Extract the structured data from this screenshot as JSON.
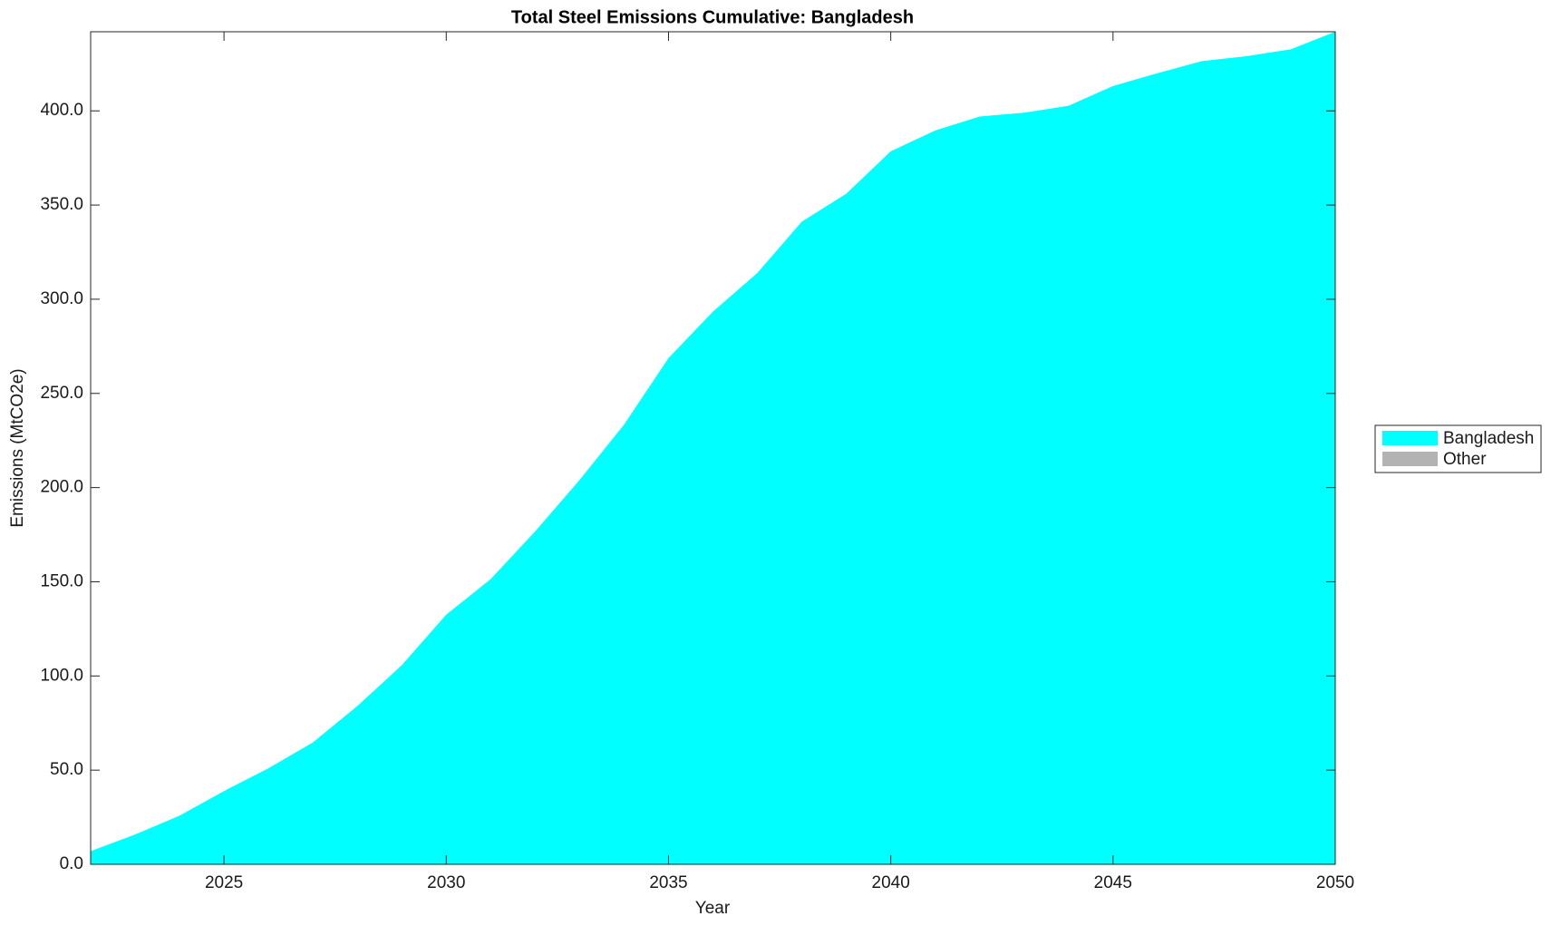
{
  "chart_data": {
    "type": "stacked_area",
    "title": "Total Steel Emissions Cumulative: Bangladesh",
    "xlabel": "Year",
    "ylabel": "Emissions (MtCO2e)",
    "x": [
      2022,
      2023,
      2024,
      2025,
      2026,
      2027,
      2028,
      2029,
      2030,
      2031,
      2032,
      2033,
      2034,
      2035,
      2036,
      2037,
      2038,
      2039,
      2040,
      2041,
      2042,
      2043,
      2044,
      2045,
      2046,
      2047,
      2048,
      2049,
      2050
    ],
    "series": [
      {
        "name": "Bangladesh",
        "color": "#00ffff",
        "values": [
          7,
          15.8,
          25.8,
          38.9,
          51,
          64.7,
          84,
          105.7,
          132.5,
          151.4,
          176.7,
          204,
          233.4,
          268.7,
          293.4,
          313.9,
          341.2,
          356,
          378.5,
          389.6,
          397,
          399,
          402.7,
          413.2,
          420,
          426.4,
          429,
          432.7,
          442
        ]
      },
      {
        "name": "Other",
        "color": "#b3b3b3",
        "values": [
          0,
          0,
          0,
          0,
          0,
          0,
          0,
          0,
          0,
          0,
          0,
          0,
          0,
          0,
          0,
          0,
          0,
          0,
          0,
          0,
          0,
          0,
          0,
          0,
          0,
          0,
          0,
          0,
          0
        ]
      }
    ],
    "xlim": [
      2022,
      2050
    ],
    "ylim": [
      0,
      442
    ],
    "xticks": [
      2025,
      2030,
      2035,
      2040,
      2045,
      2050
    ],
    "yticks": [
      {
        "value": 0,
        "label": "0.0"
      },
      {
        "value": 50,
        "label": "50.0"
      },
      {
        "value": 100,
        "label": "100.0"
      },
      {
        "value": 150,
        "label": "150.0"
      },
      {
        "value": 200,
        "label": "200.0"
      },
      {
        "value": 250,
        "label": "250.0"
      },
      {
        "value": 300,
        "label": "300.0"
      },
      {
        "value": 350,
        "label": "350.0"
      },
      {
        "value": 400,
        "label": "400.0"
      }
    ],
    "legend": "right"
  }
}
